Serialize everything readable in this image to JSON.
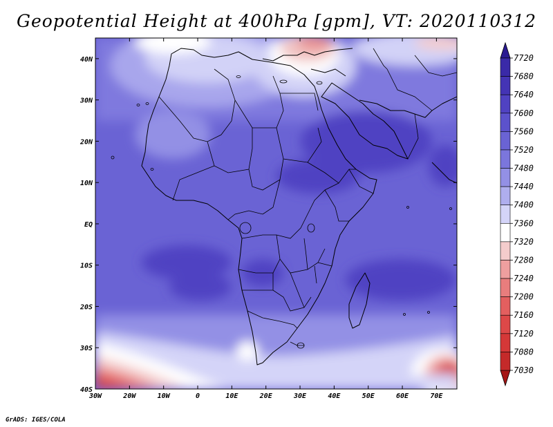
{
  "title": "Geopotential Height at 400hPa [gpm], VT: 2020110312",
  "credit": "GrADS: IGES/COLA",
  "map": {
    "region": "Africa",
    "lon_range": [
      -30,
      76
    ],
    "lat_range": [
      -40,
      45
    ],
    "lon_ticks": [
      "30W",
      "20W",
      "10W",
      "0",
      "10E",
      "20E",
      "30E",
      "40E",
      "50E",
      "60E",
      "70E"
    ],
    "lat_ticks": [
      "40N",
      "30N",
      "20N",
      "10N",
      "EQ",
      "10S",
      "20S",
      "30S",
      "40S"
    ]
  },
  "colorbar": {
    "labels": [
      "7720",
      "7680",
      "7640",
      "7600",
      "7560",
      "7520",
      "7480",
      "7440",
      "7400",
      "7360",
      "7320",
      "7280",
      "7240",
      "7200",
      "7160",
      "7120",
      "7080",
      "7030"
    ],
    "colors": [
      "#2d1e9e",
      "#3a2aa8",
      "#4434b5",
      "#5042c2",
      "#5c52cc",
      "#6a63d4",
      "#7b76dc",
      "#9390e5",
      "#afaeee",
      "#d4d4f8",
      "#ffffff",
      "#f4cccc",
      "#ee9f9f",
      "#e87d7d",
      "#e35f5f",
      "#dd4848",
      "#d53838",
      "#c42a2a",
      "#b51e1e"
    ],
    "top_color": "#2a1a92",
    "bottom_color": "#a51616"
  }
}
